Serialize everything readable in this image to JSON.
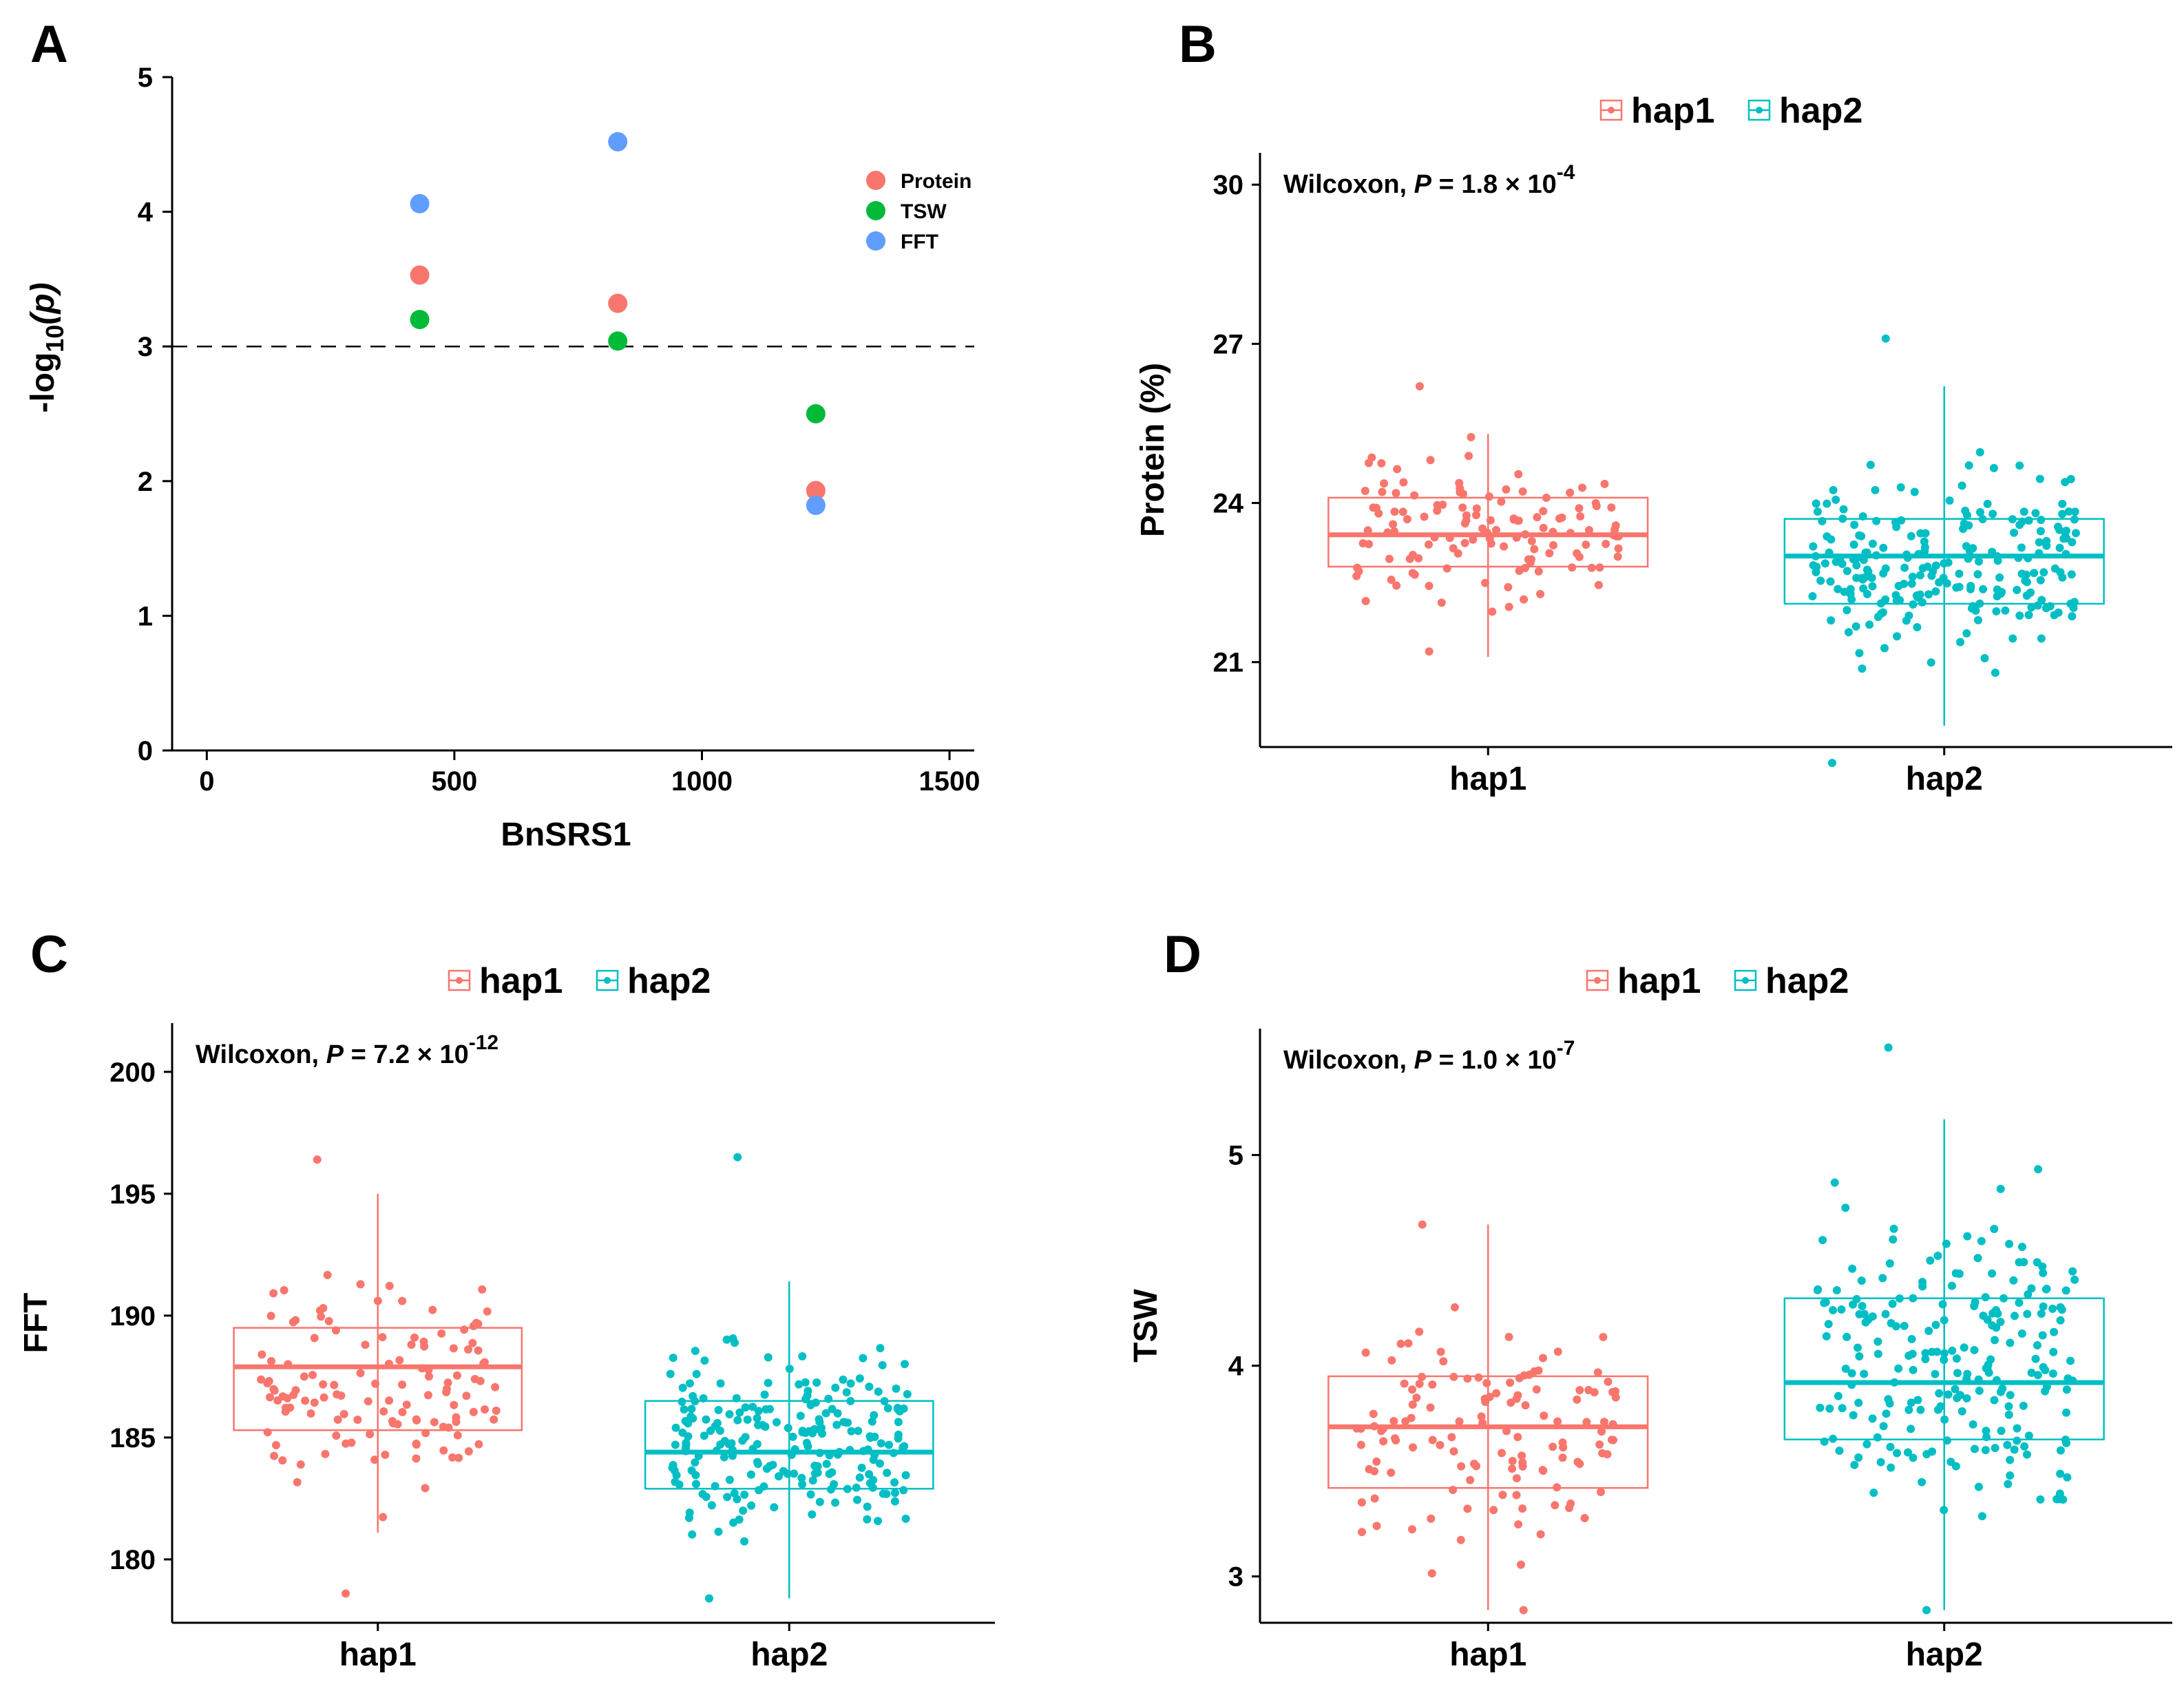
{
  "colors": {
    "hap1": "#F8766D",
    "hap2": "#00BFC4",
    "protein": "#F8766D",
    "tsw": "#00BA38",
    "fft": "#619CFF"
  },
  "panelA": {
    "letter": "A",
    "chart_data": {
      "type": "scatter",
      "xlabel": "BnSRS1",
      "ylabel_main": "-log",
      "ylabel_sub": "10",
      "ylabel_tail": "(p)",
      "xlim": [
        -70,
        1550
      ],
      "ylim": [
        0,
        5
      ],
      "xticks": [
        "0",
        "500",
        "1000",
        "1500"
      ],
      "xtick_values": [
        0,
        500,
        1000,
        1500
      ],
      "yticks": [
        "0",
        "1",
        "2",
        "3",
        "4",
        "5"
      ],
      "ytick_values": [
        0,
        1,
        2,
        3,
        4,
        5
      ],
      "threshold": 3,
      "series": [
        {
          "name": "Protein",
          "color": "#F8766D",
          "x": [
            430,
            830,
            1230
          ],
          "y": [
            3.53,
            3.32,
            1.93
          ]
        },
        {
          "name": "TSW",
          "color": "#00BA38",
          "x": [
            430,
            830,
            1230
          ],
          "y": [
            3.2,
            3.04,
            2.5
          ]
        },
        {
          "name": "FFT",
          "color": "#619CFF",
          "x": [
            430,
            830,
            1230
          ],
          "y": [
            4.06,
            4.52,
            1.82
          ]
        }
      ]
    }
  },
  "panelB": {
    "letter": "B",
    "legend": [
      "hap1",
      "hap2"
    ],
    "stat_prefix": "Wilcoxon, ",
    "stat_p": "P",
    "stat_eq": " = 1.8 × 10",
    "stat_exp": "-4",
    "chart_data": {
      "type": "box",
      "title": "",
      "xlabel": "",
      "ylabel": "Protein (%)",
      "categories": [
        "hap1",
        "hap2"
      ],
      "ylim": [
        19.4,
        30.6
      ],
      "yticks": [
        "21",
        "24",
        "27",
        "30"
      ],
      "ytick_values": [
        21,
        24,
        27,
        30
      ],
      "boxes": [
        {
          "name": "hap1",
          "min": 21.1,
          "q1": 22.8,
          "median": 23.4,
          "q3": 24.1,
          "max": 25.3,
          "n": 130,
          "lo": 21.2,
          "hi": 26.2
        },
        {
          "name": "hap2",
          "min": 19.8,
          "q1": 22.1,
          "median": 23.0,
          "q3": 23.7,
          "max": 26.2,
          "n": 230,
          "lo": 19.1,
          "hi": 27.1
        }
      ]
    }
  },
  "panelC": {
    "letter": "C",
    "legend": [
      "hap1",
      "hap2"
    ],
    "stat_prefix": "Wilcoxon, ",
    "stat_p": "P",
    "stat_eq": " = 7.2 × 10",
    "stat_exp": "-12",
    "chart_data": {
      "type": "box",
      "title": "",
      "xlabel": "",
      "ylabel": "FFT",
      "categories": [
        "hap1",
        "hap2"
      ],
      "ylim": [
        177.4,
        202.0
      ],
      "yticks": [
        "180",
        "185",
        "190",
        "195",
        "200"
      ],
      "ytick_values": [
        180,
        185,
        190,
        195,
        200
      ],
      "boxes": [
        {
          "name": "hap1",
          "min": 181.1,
          "q1": 185.3,
          "median": 187.9,
          "q3": 189.5,
          "max": 195.0,
          "n": 130,
          "lo": 178.6,
          "hi": 196.4
        },
        {
          "name": "hap2",
          "min": 178.4,
          "q1": 182.9,
          "median": 184.4,
          "q3": 186.5,
          "max": 191.4,
          "n": 230,
          "lo": 178.4,
          "hi": 196.5
        }
      ]
    }
  },
  "panelD": {
    "letter": "D",
    "legend": [
      "hap1",
      "hap2"
    ],
    "stat_prefix": "Wilcoxon, ",
    "stat_p": "P",
    "stat_eq": " = 1.0 × 10",
    "stat_exp": "-7",
    "chart_data": {
      "type": "box",
      "title": "",
      "xlabel": "",
      "ylabel": "TSW",
      "categories": [
        "hap1",
        "hap2"
      ],
      "ylim": [
        2.78,
        5.6
      ],
      "yticks": [
        "3",
        "4",
        "5"
      ],
      "ytick_values": [
        3,
        4,
        5
      ],
      "boxes": [
        {
          "name": "hap1",
          "min": 2.84,
          "q1": 3.42,
          "median": 3.71,
          "q3": 3.95,
          "max": 4.67,
          "n": 130,
          "lo": 2.84,
          "hi": 4.67
        },
        {
          "name": "hap2",
          "min": 2.84,
          "q1": 3.65,
          "median": 3.92,
          "q3": 4.32,
          "max": 5.17,
          "n": 230,
          "lo": 2.84,
          "hi": 5.51
        }
      ]
    }
  }
}
